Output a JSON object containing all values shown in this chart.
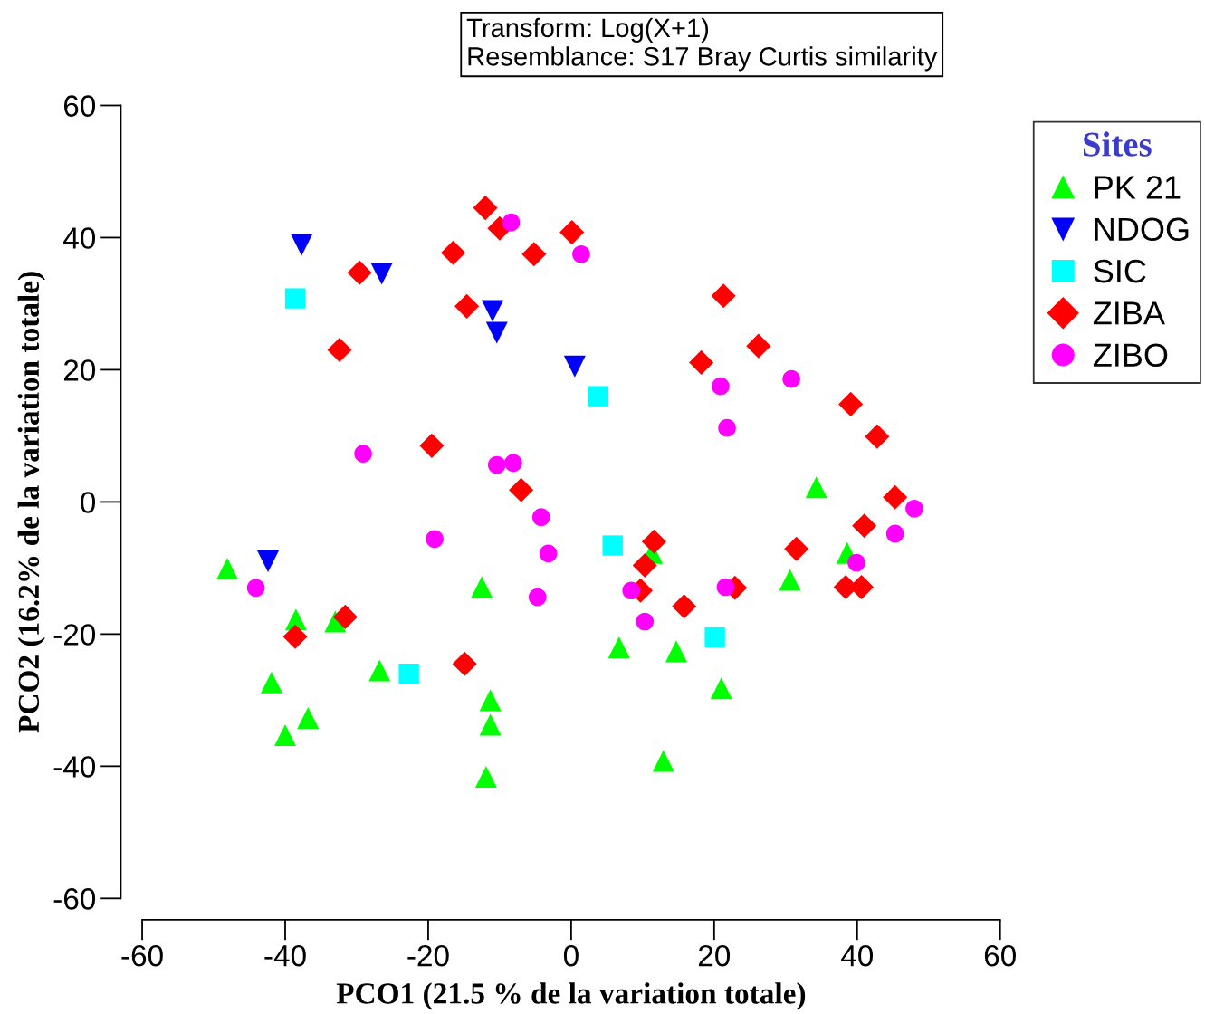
{
  "chart_data": {
    "type": "scatter",
    "xlabel": "PCO1 (21.5 % de la variation totale)",
    "ylabel": "PCO2 (16.2% de la variation totale)",
    "legend_title": "Sites",
    "annotations": [
      "Transform: Log(X+1)",
      "Resemblance: S17 Bray Curtis similarity"
    ],
    "xlim": [
      -60,
      60
    ],
    "xticks": [
      -60,
      -40,
      -20,
      0,
      20,
      40,
      60
    ],
    "ylim": [
      -60,
      60
    ],
    "yticks": [
      -60,
      -40,
      -20,
      0,
      20,
      40,
      60
    ],
    "grid": false,
    "legend": "top right",
    "series": [
      {
        "name": "PK 21",
        "color": "#00ff00",
        "marker": "triangle",
        "x": [
          -48.1,
          -38.5,
          -33.0,
          -41.9,
          -40.0,
          -36.8,
          -26.8,
          -12.5,
          -11.3,
          -11.3,
          -11.9,
          6.7,
          11.3,
          14.7,
          21.0,
          12.9,
          30.6,
          34.3,
          38.6
        ],
        "values": [
          -10.1,
          -17.8,
          -18.1,
          -27.3,
          -35.3,
          -32.7,
          -25.5,
          -12.9,
          -30.0,
          -33.7,
          -41.6,
          -22.0,
          -7.7,
          -22.6,
          -28.2,
          -39.2,
          -11.8,
          2.2,
          -7.7
        ]
      },
      {
        "name": "NDOG",
        "color": "#0000ff",
        "marker": "triangle_down",
        "x": [
          -37.7,
          -26.5,
          -11.0,
          -10.4,
          0.5,
          -42.4
        ],
        "values": [
          38.9,
          34.5,
          28.9,
          25.6,
          20.5,
          -9.0
        ]
      },
      {
        "name": "SIC",
        "color": "#00ffff",
        "marker": "square",
        "x": [
          -38.6,
          3.8,
          5.8,
          20.1,
          -22.7
        ],
        "values": [
          30.8,
          16.0,
          -6.6,
          -20.5,
          -26.0
        ]
      },
      {
        "name": "ZIBA",
        "color": "#ff0000",
        "marker": "diamond",
        "x": [
          -12.0,
          -10.0,
          -16.5,
          -5.2,
          0.1,
          -29.6,
          -14.6,
          -32.4,
          21.3,
          26.2,
          18.2,
          39.1,
          42.8,
          45.3,
          41.0,
          31.5,
          -19.5,
          -7.0,
          11.6,
          10.3,
          9.7,
          15.8,
          22.9,
          38.4,
          40.6,
          -31.6,
          -38.6,
          -14.9
        ],
        "values": [
          44.5,
          41.4,
          37.7,
          37.5,
          40.8,
          34.7,
          29.6,
          23.0,
          31.2,
          23.6,
          21.1,
          14.8,
          9.9,
          0.7,
          -3.6,
          -7.1,
          8.5,
          1.8,
          -6.0,
          -9.6,
          -13.4,
          -15.8,
          -13.0,
          -12.9,
          -12.9,
          -17.4,
          -20.4,
          -24.5
        ]
      },
      {
        "name": "ZIBO",
        "color": "#ff00ff",
        "marker": "circle",
        "x": [
          -8.4,
          1.4,
          20.9,
          30.8,
          21.8,
          -29.1,
          -10.4,
          -8.1,
          -4.2,
          -3.2,
          -4.7,
          -19.1,
          -44.1,
          8.4,
          10.3,
          21.6,
          39.9,
          45.3,
          48.0
        ],
        "values": [
          42.3,
          37.5,
          17.5,
          18.6,
          11.2,
          7.3,
          5.6,
          5.9,
          -2.3,
          -7.8,
          -14.4,
          -5.6,
          -13.0,
          -13.4,
          -18.1,
          -12.9,
          -9.2,
          -4.8,
          -1.0
        ]
      }
    ]
  }
}
